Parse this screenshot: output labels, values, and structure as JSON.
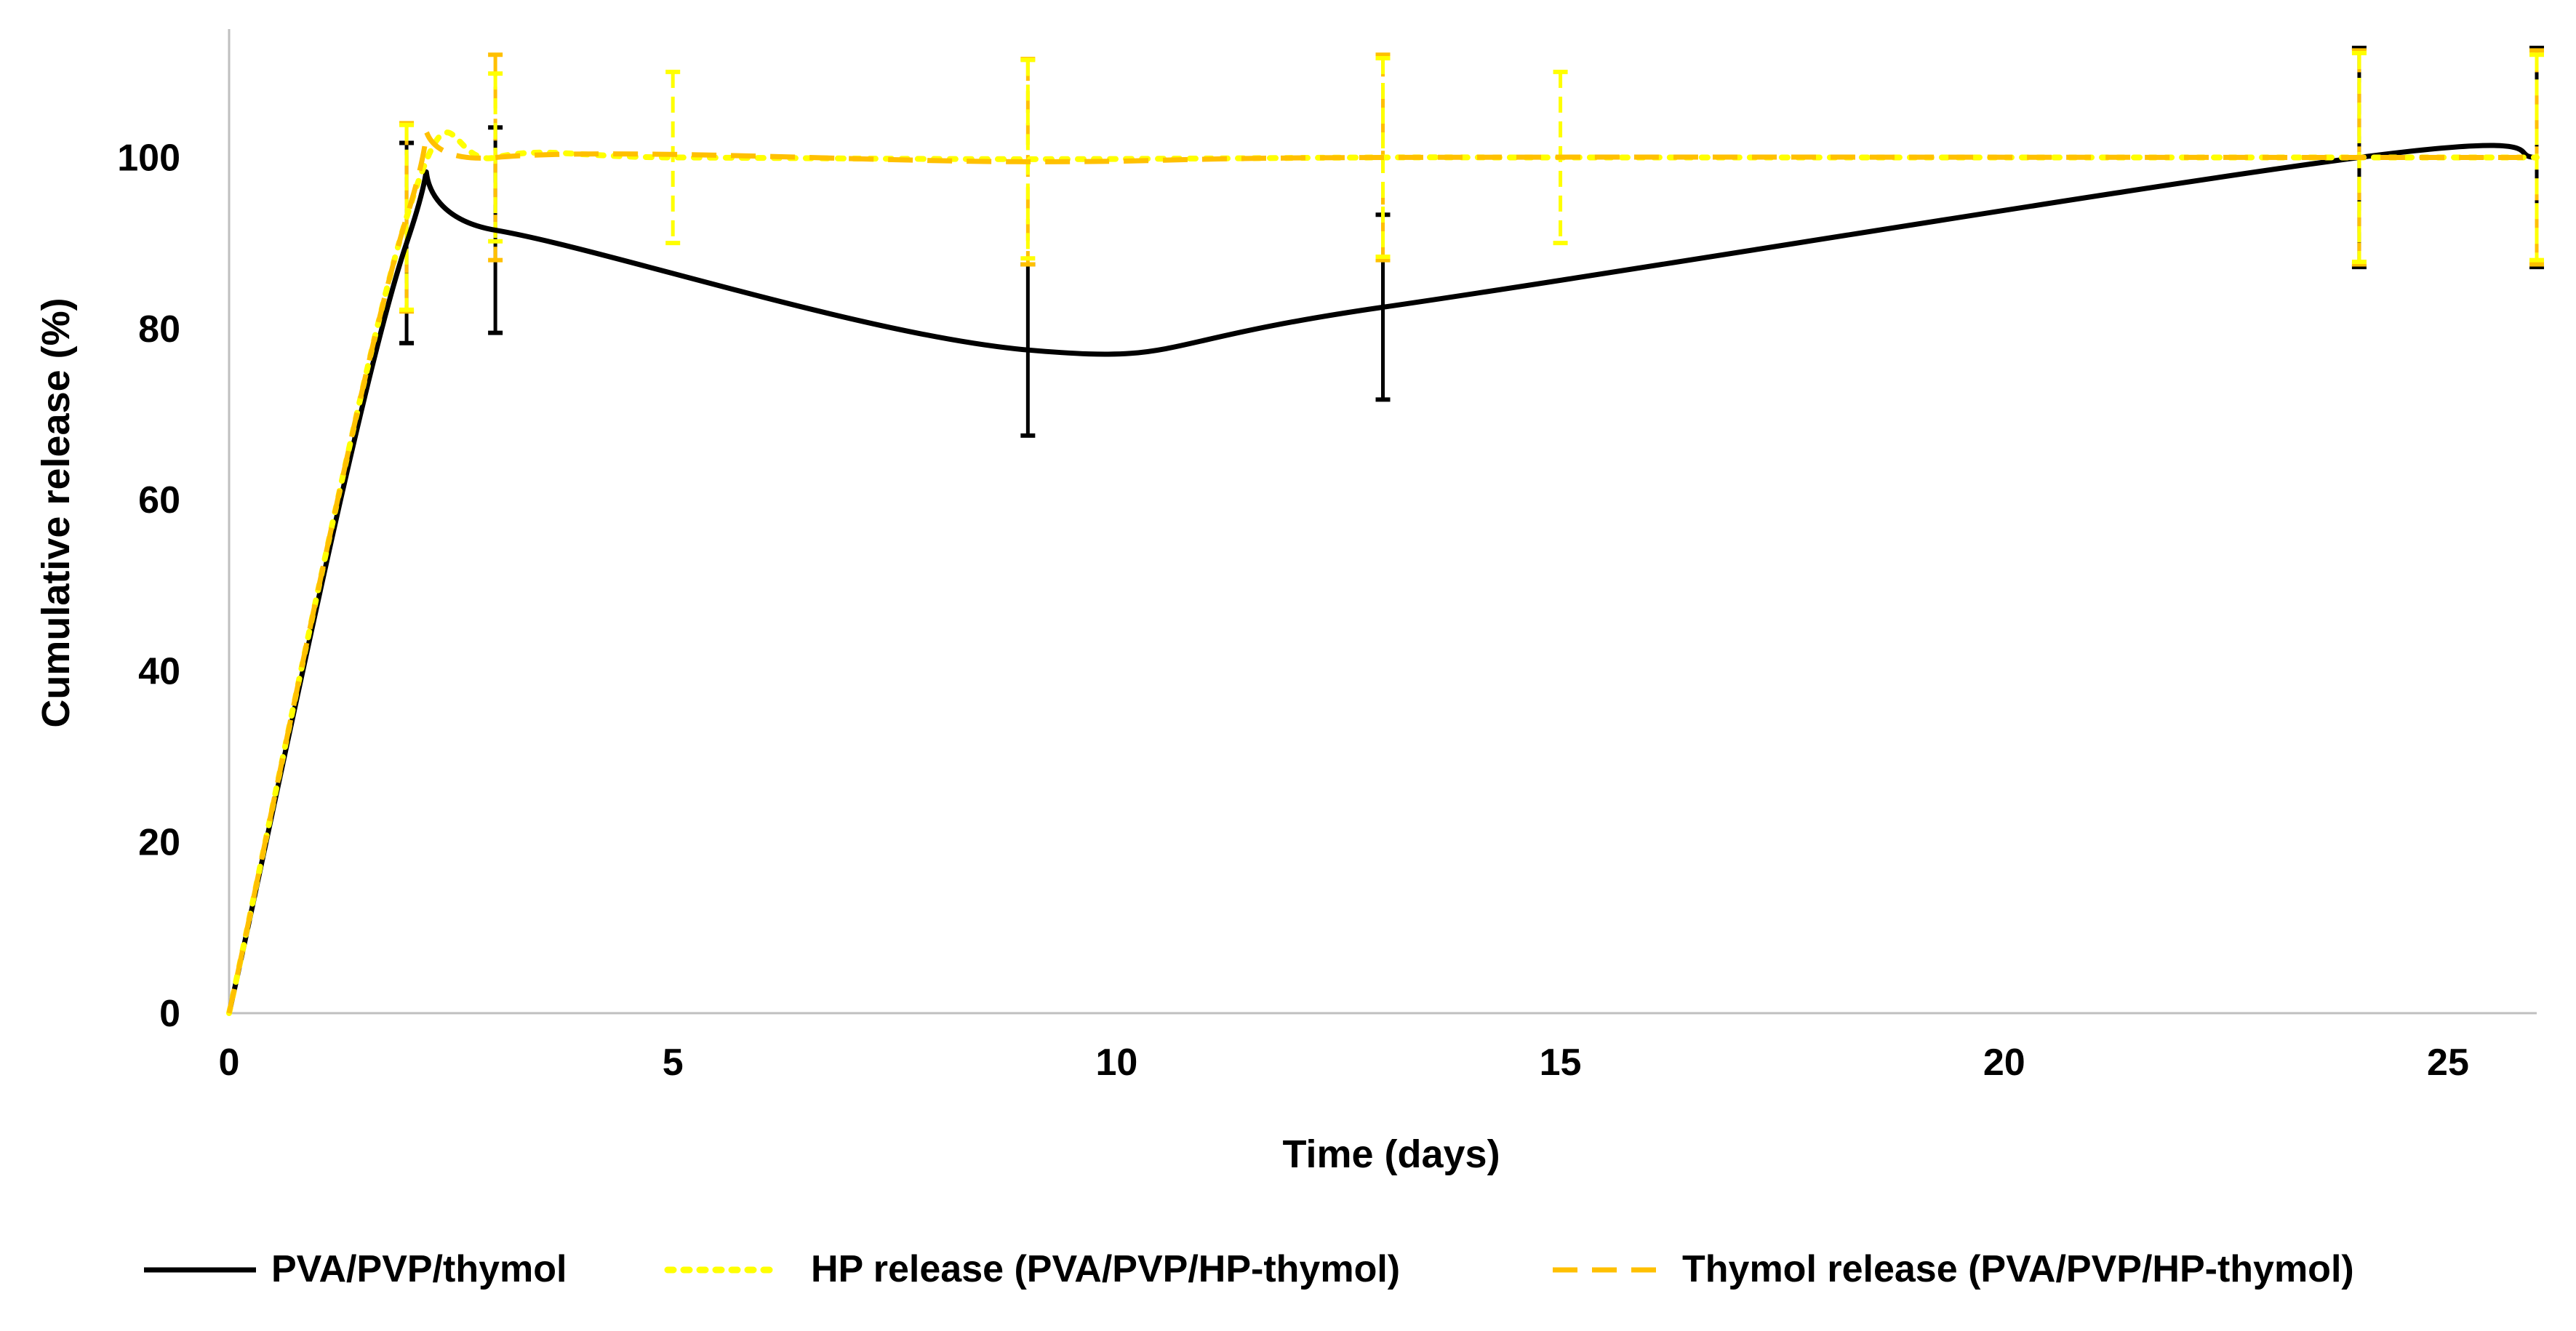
{
  "chart_data": {
    "type": "line",
    "title": "",
    "xlabel": "Time (days)",
    "ylabel": "Cumulative release (%)",
    "xlim": [
      0,
      26
    ],
    "ylim": [
      0,
      115
    ],
    "xticks": [
      0,
      5,
      10,
      15,
      20,
      25
    ],
    "yticks": [
      0,
      20,
      40,
      60,
      80,
      100
    ],
    "grid": false,
    "legend_position": "bottom",
    "series": [
      {
        "name": "PVA/PVP/thymol",
        "style": "solid",
        "color": "#000000",
        "x": [
          0,
          2,
          3,
          9,
          13,
          24,
          26
        ],
        "y": [
          0,
          90,
          91.5,
          77.5,
          82.5,
          100,
          100
        ],
        "error": [
          0,
          11.7,
          12,
          10,
          10.8,
          12.8,
          12.8
        ]
      },
      {
        "name": "HP release (PVA/PVP/HP-thymol)",
        "style": "dotted",
        "color": "#FFFF00",
        "x": [
          0,
          2,
          3,
          5,
          9,
          13,
          15,
          24,
          26
        ],
        "y": [
          0,
          93,
          100,
          100,
          99.8,
          100,
          100,
          100,
          100
        ],
        "error": [
          0,
          10.8,
          9.8,
          10,
          11.6,
          11.6,
          10,
          12.2,
          12
        ]
      },
      {
        "name": "Thymol release (PVA/PVP/HP-thymol)",
        "style": "dashed",
        "color": "#FFC000",
        "x": [
          0,
          2,
          3,
          9,
          13,
          24,
          26
        ],
        "y": [
          0,
          93,
          100,
          99.5,
          100,
          100,
          100
        ],
        "error": [
          0,
          11,
          12,
          12,
          12,
          12.5,
          12.5
        ]
      }
    ]
  }
}
